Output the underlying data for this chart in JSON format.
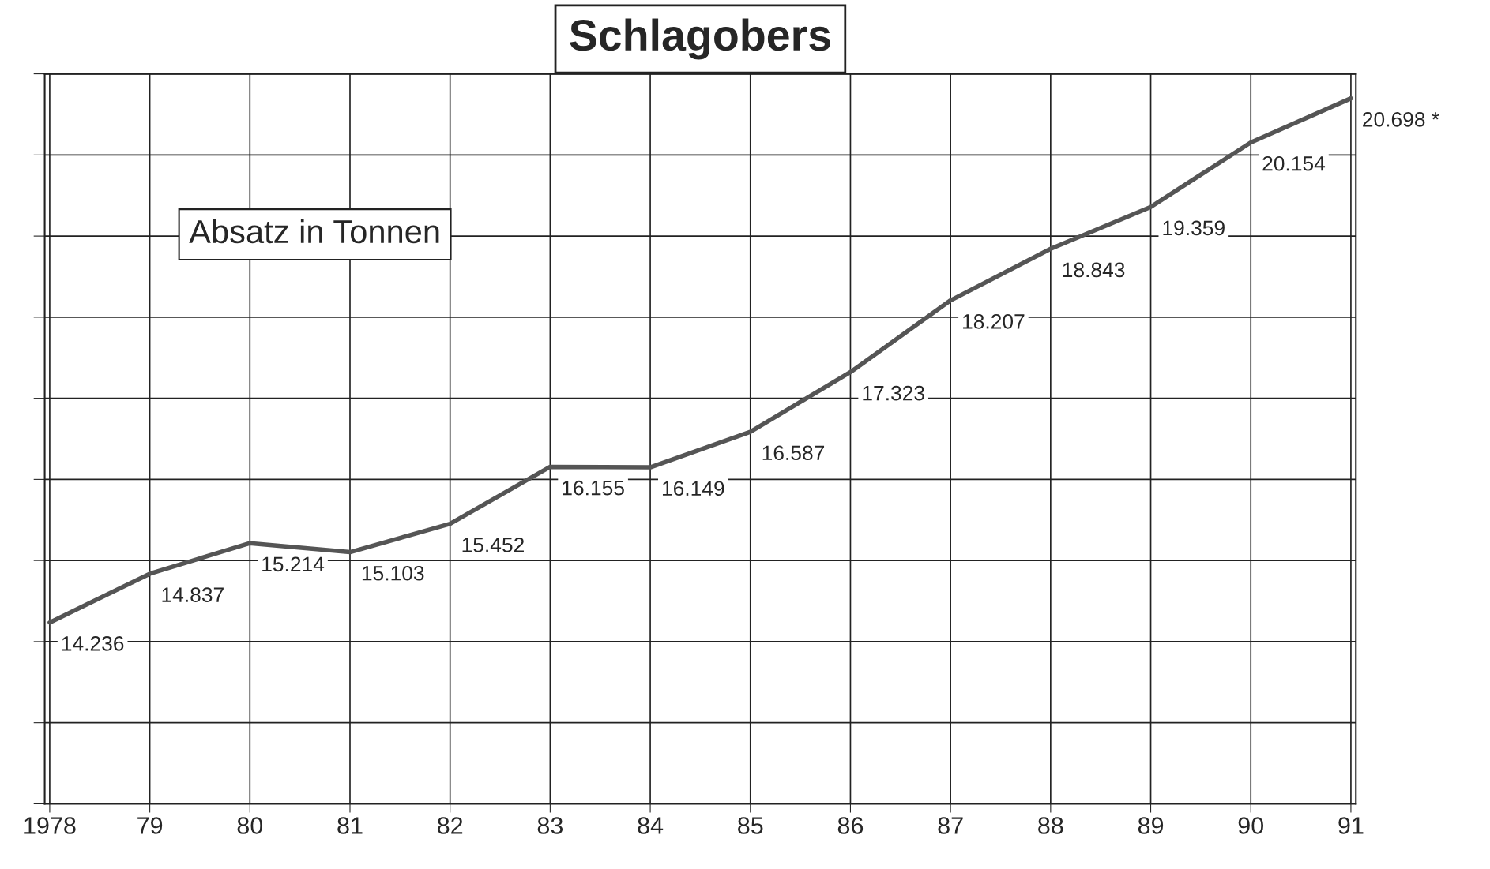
{
  "chart_data": {
    "type": "line",
    "title": "Schlagobers",
    "annotations": [
      "Absatz in Tonnen"
    ],
    "categories": [
      "1978",
      "79",
      "80",
      "81",
      "82",
      "83",
      "84",
      "85",
      "86",
      "87",
      "88",
      "89",
      "90",
      "91"
    ],
    "series": [
      {
        "color": "#555555",
        "values": [
          14236,
          14837,
          15214,
          15103,
          15452,
          16155,
          16149,
          16587,
          17323,
          18207,
          18843,
          19359,
          20154,
          20698
        ],
        "value_labels": [
          "14.236",
          "14.837",
          "15.214",
          "15.103",
          "15.452",
          "16.155",
          "16.149",
          "16.587",
          "17.323",
          "18.207",
          "18.843",
          "19.359",
          "20.154",
          "20.698 *"
        ]
      }
    ],
    "ylim": [
      12000,
      21000
    ],
    "yticks": [
      {
        "value": 12000,
        "label": null
      },
      {
        "value": 13000,
        "label": null
      },
      {
        "value": 14000,
        "label": null
      },
      {
        "value": 15000,
        "label": null
      },
      {
        "value": 16000,
        "label": null
      },
      {
        "value": 17000,
        "label": null
      },
      {
        "value": 18000,
        "label": null
      },
      {
        "value": 19000,
        "label": null
      },
      {
        "value": 20000,
        "label": null
      },
      {
        "value": 21000,
        "label": null
      }
    ],
    "grid": true,
    "marker": "none",
    "line_style": "solid",
    "legend": false
  }
}
